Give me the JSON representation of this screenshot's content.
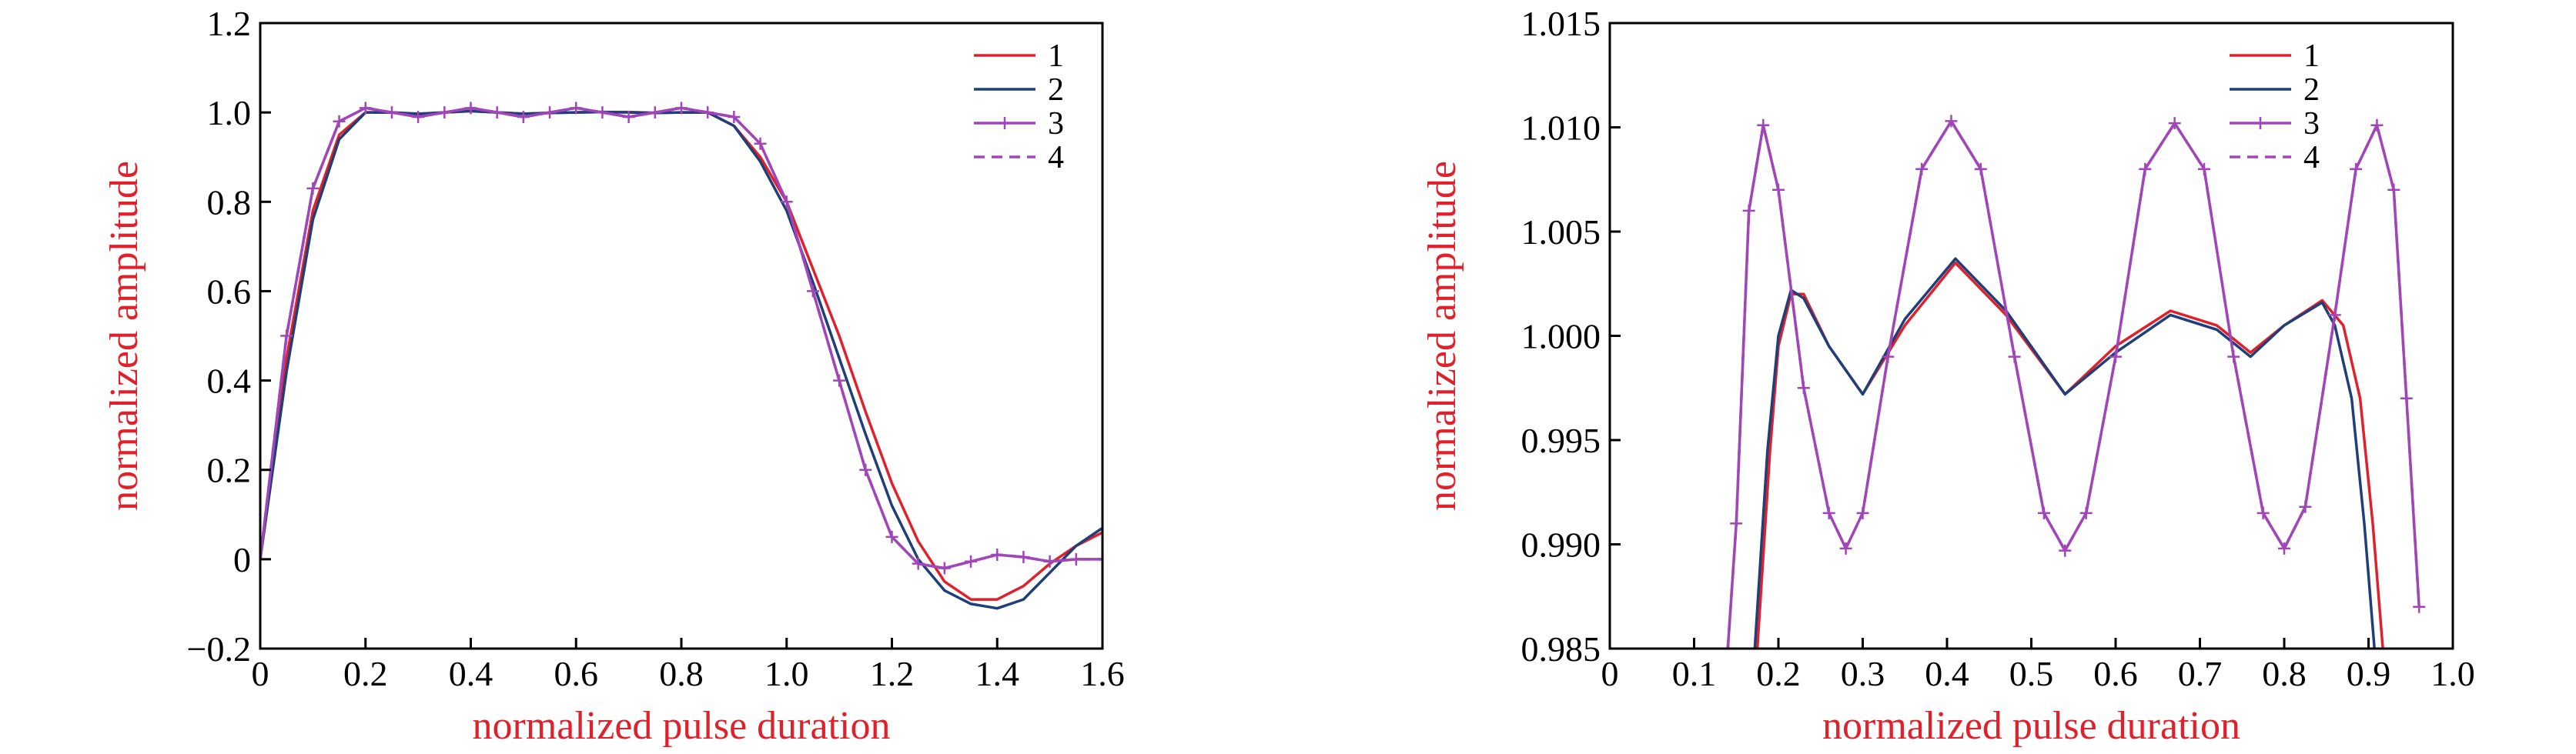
{
  "chart_data": [
    {
      "type": "line",
      "xlabel": "normalized pulse duration",
      "ylabel": "normalized amplitude",
      "label_color": "#e0202a",
      "xlim": [
        0,
        1.6
      ],
      "ylim": [
        -0.2,
        1.2
      ],
      "xticks": [
        0,
        0.2,
        0.4,
        0.6,
        0.8,
        1.0,
        1.2,
        1.4,
        1.6
      ],
      "xtick_labels": [
        "0",
        "0.2",
        "0.4",
        "0.6",
        "0.8",
        "1.0",
        "1.2",
        "1.4",
        "1.6"
      ],
      "yticks": [
        -0.2,
        0,
        0.2,
        0.4,
        0.6,
        0.8,
        1.0,
        1.2
      ],
      "ytick_labels": [
        "−0.2",
        "0",
        "0.2",
        "0.4",
        "0.6",
        "0.8",
        "1.0",
        "1.2"
      ],
      "grid": false,
      "legend_position": "top-right",
      "series": [
        {
          "name": "1",
          "color": "#e0202a",
          "style": "solid",
          "marker": "none",
          "x": [
            0,
            0.05,
            0.1,
            0.15,
            0.2,
            0.25,
            0.3,
            0.35,
            0.4,
            0.45,
            0.5,
            0.55,
            0.6,
            0.65,
            0.7,
            0.75,
            0.8,
            0.85,
            0.9,
            0.95,
            1.0,
            1.05,
            1.1,
            1.15,
            1.2,
            1.25,
            1.3,
            1.35,
            1.4,
            1.45,
            1.5,
            1.55,
            1.6
          ],
          "y": [
            0,
            0.45,
            0.78,
            0.95,
            1.0,
            1.0,
            0.996,
            1.0,
            1.003,
            1.0,
            0.997,
            0.999,
            1.0,
            1.001,
            1.001,
            0.999,
            1.0,
            1.0,
            0.97,
            0.9,
            0.8,
            0.65,
            0.5,
            0.33,
            0.17,
            0.04,
            -0.05,
            -0.09,
            -0.09,
            -0.06,
            -0.01,
            0.03,
            0.06
          ]
        },
        {
          "name": "2",
          "color": "#1f3f7a",
          "style": "solid",
          "marker": "none",
          "x": [
            0,
            0.05,
            0.1,
            0.15,
            0.2,
            0.25,
            0.3,
            0.35,
            0.4,
            0.45,
            0.5,
            0.55,
            0.6,
            0.65,
            0.7,
            0.75,
            0.8,
            0.85,
            0.9,
            0.95,
            1.0,
            1.05,
            1.1,
            1.15,
            1.2,
            1.25,
            1.3,
            1.35,
            1.4,
            1.45,
            1.5,
            1.55,
            1.6
          ],
          "y": [
            0,
            0.42,
            0.76,
            0.94,
            1.0,
            1.0,
            0.997,
            1.0,
            1.003,
            1.0,
            0.997,
            0.999,
            1.0,
            1.001,
            1.0,
            0.999,
            1.0,
            1.0,
            0.97,
            0.89,
            0.78,
            0.62,
            0.45,
            0.28,
            0.12,
            0.0,
            -0.07,
            -0.1,
            -0.11,
            -0.09,
            -0.03,
            0.03,
            0.07
          ]
        },
        {
          "name": "3",
          "color": "#a046b8",
          "style": "solid",
          "marker": "plus",
          "x": [
            0,
            0.05,
            0.1,
            0.15,
            0.2,
            0.25,
            0.3,
            0.35,
            0.4,
            0.45,
            0.5,
            0.55,
            0.6,
            0.65,
            0.7,
            0.75,
            0.8,
            0.85,
            0.9,
            0.95,
            1.0,
            1.05,
            1.1,
            1.15,
            1.2,
            1.25,
            1.3,
            1.35,
            1.4,
            1.45,
            1.5,
            1.55,
            1.6
          ],
          "y": [
            0,
            0.5,
            0.83,
            0.98,
            1.01,
            1.0,
            0.99,
            1.0,
            1.01,
            1.0,
            0.99,
            1.0,
            1.01,
            1.0,
            0.99,
            1.0,
            1.01,
            1.0,
            0.99,
            0.93,
            0.8,
            0.6,
            0.4,
            0.2,
            0.05,
            -0.01,
            -0.02,
            -0.005,
            0.01,
            0.005,
            -0.005,
            0.0,
            0.0
          ]
        },
        {
          "name": "4",
          "color": "#a046b8",
          "style": "dashed",
          "marker": "none",
          "x": [
            0,
            0.05,
            0.1,
            0.15,
            0.2,
            0.25,
            0.3,
            0.35,
            0.4,
            0.45,
            0.5,
            0.55,
            0.6,
            0.65,
            0.7,
            0.75,
            0.8,
            0.85,
            0.9,
            0.95,
            1.0,
            1.05,
            1.1,
            1.15,
            1.2,
            1.25,
            1.3,
            1.35,
            1.4,
            1.45,
            1.5,
            1.55,
            1.6
          ],
          "y": [
            0,
            0.5,
            0.83,
            0.98,
            1.01,
            1.0,
            0.99,
            1.0,
            1.01,
            1.0,
            0.99,
            1.0,
            1.01,
            1.0,
            0.99,
            1.0,
            1.01,
            1.0,
            0.99,
            0.93,
            0.8,
            0.6,
            0.4,
            0.2,
            0.05,
            -0.01,
            -0.02,
            -0.005,
            0.01,
            0.005,
            -0.005,
            0.0,
            0.0
          ]
        }
      ]
    },
    {
      "type": "line",
      "xlabel": "normalized pulse duration",
      "ylabel": "normalized amplitude",
      "label_color": "#e0202a",
      "xlim": [
        0,
        1.0
      ],
      "ylim": [
        0.985,
        1.015
      ],
      "xticks": [
        0,
        0.1,
        0.2,
        0.3,
        0.4,
        0.5,
        0.6,
        0.7,
        0.8,
        0.9,
        1.0
      ],
      "xtick_labels": [
        "0",
        "0.1",
        "0.2",
        "0.3",
        "0.4",
        "0.5",
        "0.6",
        "0.7",
        "0.8",
        "0.9",
        "1.0"
      ],
      "yticks": [
        0.985,
        0.99,
        0.995,
        1.0,
        1.005,
        1.01,
        1.015
      ],
      "ytick_labels": [
        "0.985",
        "0.990",
        "0.995",
        "1.000",
        "1.005",
        "1.010",
        "1.015"
      ],
      "grid": false,
      "legend_position": "top-right",
      "series": [
        {
          "name": "1",
          "color": "#e0202a",
          "style": "solid",
          "marker": "none",
          "x": [
            0.175,
            0.19,
            0.2,
            0.215,
            0.23,
            0.26,
            0.3,
            0.35,
            0.41,
            0.47,
            0.54,
            0.6,
            0.665,
            0.72,
            0.76,
            0.8,
            0.845,
            0.87,
            0.89,
            0.905,
            0.917
          ],
          "y": [
            0.985,
            0.9945,
            0.9995,
            1.002,
            1.002,
            0.9995,
            0.9972,
            1.0005,
            1.0035,
            1.001,
            0.9972,
            0.9995,
            1.0012,
            1.0005,
            0.9992,
            1.0005,
            1.0017,
            1.0005,
            0.997,
            0.991,
            0.985
          ]
        },
        {
          "name": "2",
          "color": "#1f3f7a",
          "style": "solid",
          "marker": "none",
          "x": [
            0.172,
            0.187,
            0.2,
            0.215,
            0.23,
            0.26,
            0.3,
            0.35,
            0.41,
            0.47,
            0.54,
            0.6,
            0.665,
            0.72,
            0.76,
            0.8,
            0.845,
            0.86,
            0.88,
            0.895,
            0.907
          ],
          "y": [
            0.985,
            0.9945,
            1.0,
            1.0022,
            1.0018,
            0.9995,
            0.9972,
            1.0008,
            1.0037,
            1.0012,
            0.9972,
            0.9992,
            1.001,
            1.0003,
            0.999,
            1.0005,
            1.0016,
            1.0005,
            0.997,
            0.991,
            0.985
          ]
        },
        {
          "name": "3",
          "color": "#a046b8",
          "style": "solid",
          "marker": "plus",
          "x": [
            0.14,
            0.15,
            0.165,
            0.182,
            0.2,
            0.23,
            0.26,
            0.28,
            0.3,
            0.33,
            0.37,
            0.405,
            0.44,
            0.48,
            0.515,
            0.54,
            0.565,
            0.6,
            0.635,
            0.67,
            0.705,
            0.74,
            0.775,
            0.8,
            0.825,
            0.86,
            0.885,
            0.91,
            0.93,
            0.945,
            0.96
          ],
          "y": [
            0.985,
            0.991,
            1.006,
            1.0101,
            1.007,
            0.9975,
            0.9915,
            0.9898,
            0.9915,
            0.999,
            1.008,
            1.0103,
            1.008,
            0.999,
            0.9915,
            0.9897,
            0.9915,
            0.999,
            1.008,
            1.0102,
            1.008,
            0.999,
            0.9915,
            0.9898,
            0.9918,
            1.001,
            1.008,
            1.0101,
            1.007,
            0.997,
            0.987
          ]
        },
        {
          "name": "4",
          "color": "#a046b8",
          "style": "dashed",
          "marker": "none",
          "x": [
            0.14,
            0.15,
            0.165,
            0.182,
            0.2,
            0.23,
            0.26,
            0.28,
            0.3,
            0.33,
            0.37,
            0.405,
            0.44,
            0.48,
            0.515,
            0.54,
            0.565,
            0.6,
            0.635,
            0.67,
            0.705,
            0.74,
            0.775,
            0.8,
            0.825,
            0.86,
            0.885,
            0.91,
            0.93,
            0.945,
            0.96
          ],
          "y": [
            0.985,
            0.991,
            1.006,
            1.0101,
            1.007,
            0.9975,
            0.9915,
            0.9898,
            0.9915,
            0.999,
            1.008,
            1.0103,
            1.008,
            0.999,
            0.9915,
            0.9897,
            0.9915,
            0.999,
            1.008,
            1.0102,
            1.008,
            0.999,
            0.9915,
            0.9898,
            0.9918,
            1.001,
            1.008,
            1.0101,
            1.007,
            0.997,
            0.987
          ]
        }
      ]
    }
  ]
}
